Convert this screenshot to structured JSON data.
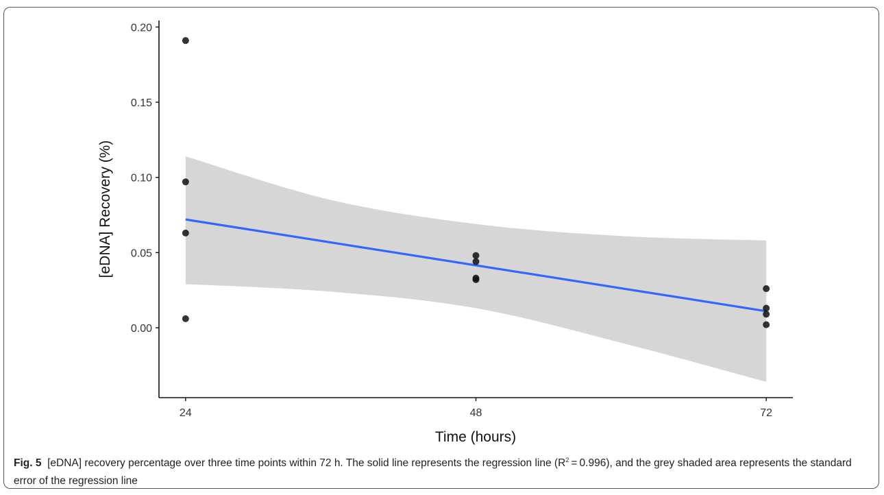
{
  "chart_data": {
    "type": "scatter",
    "xlabel": "Time (hours)",
    "ylabel": "[eDNA] Recovery (%)",
    "x_ticks": [
      24,
      48,
      72
    ],
    "y_ticks": [
      0.0,
      0.05,
      0.1,
      0.15,
      0.2
    ],
    "y_tick_labels": [
      "0.00",
      "0.05",
      "0.10",
      "0.15",
      "0.20"
    ],
    "xlim": [
      21.8,
      74.2
    ],
    "ylim": [
      -0.0465,
      0.2043
    ],
    "grid": false,
    "legend": "none",
    "points": [
      {
        "x": 24,
        "y": 0.191
      },
      {
        "x": 24,
        "y": 0.097
      },
      {
        "x": 24,
        "y": 0.063
      },
      {
        "x": 24,
        "y": 0.006
      },
      {
        "x": 48,
        "y": 0.048
      },
      {
        "x": 48,
        "y": 0.044
      },
      {
        "x": 48,
        "y": 0.033
      },
      {
        "x": 48,
        "y": 0.032
      },
      {
        "x": 72,
        "y": 0.026
      },
      {
        "x": 72,
        "y": 0.013
      },
      {
        "x": 72,
        "y": 0.009
      },
      {
        "x": 72,
        "y": 0.002
      }
    ],
    "regression": {
      "x": [
        24,
        72
      ],
      "y": [
        0.072,
        0.011
      ]
    },
    "confidence_band": {
      "x": [
        24,
        36,
        48,
        60,
        72
      ],
      "upper": [
        0.114,
        0.085,
        0.069,
        0.061,
        0.058
      ],
      "lower": [
        0.029,
        0.024,
        0.013,
        -0.01,
        -0.036
      ]
    },
    "colors": {
      "points": "#111111",
      "line": "#3366ff",
      "band": "#d6d6d6",
      "axis": "#111111"
    }
  },
  "caption": {
    "label": "Fig. 5",
    "text_before_r2": "[eDNA] recovery percentage over three time points within 72 h. The solid line represents the regression line (R",
    "superscript": "2",
    "text_after_r2": " = 0.996), and the grey shaded area represents the standard error of the regression line"
  }
}
